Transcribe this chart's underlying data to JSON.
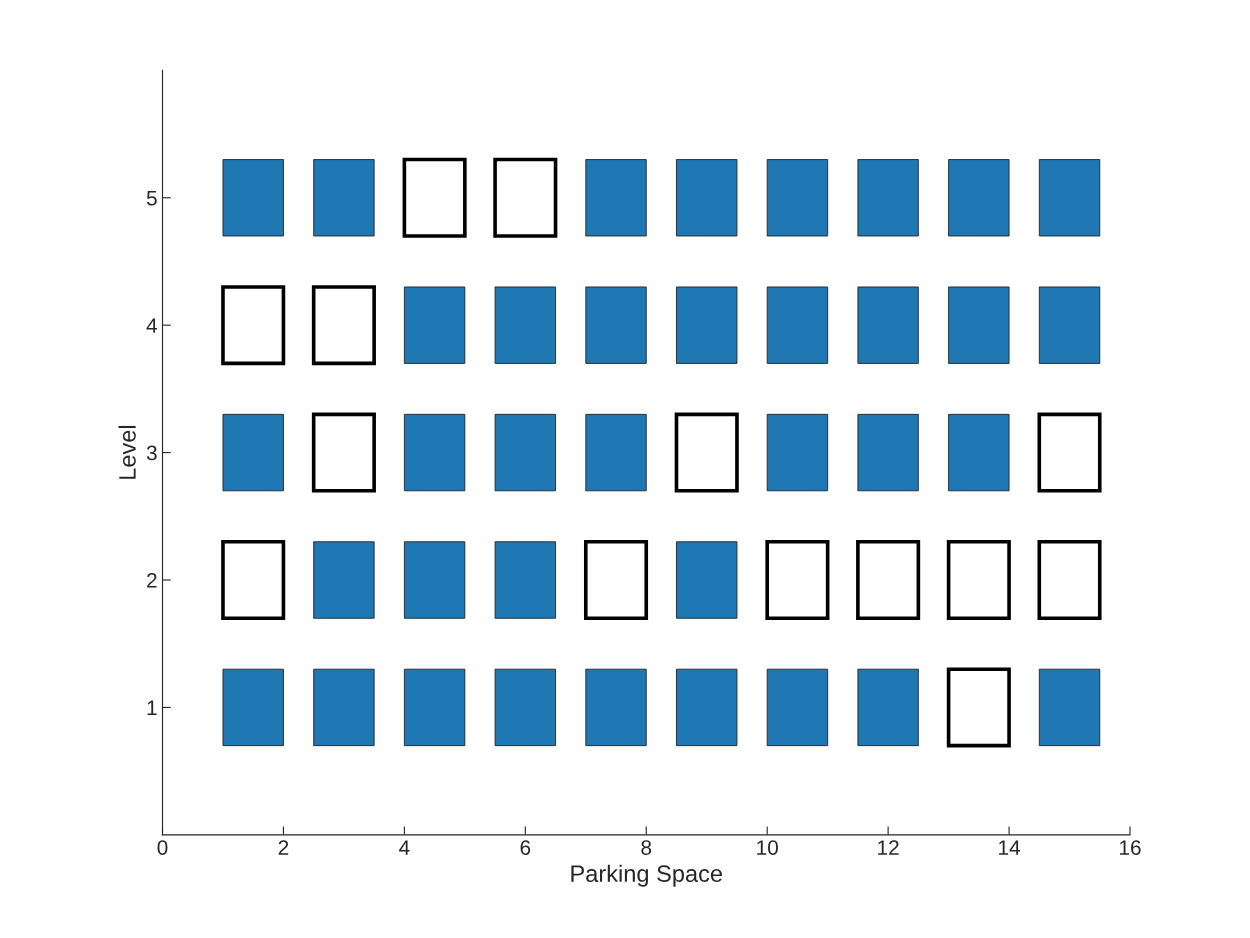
{
  "chart_data": {
    "type": "bar",
    "xlabel": "Parking Space",
    "ylabel": "Level",
    "xlim": [
      0,
      16
    ],
    "xticks": [
      0,
      2,
      4,
      6,
      8,
      10,
      12,
      14,
      16
    ],
    "ylim": [
      0,
      6
    ],
    "yticks": [
      1,
      2,
      3,
      4,
      5
    ],
    "grid": false,
    "series": [
      {
        "x": [
          1.5,
          3,
          4.5,
          6,
          7.5,
          9,
          10.5,
          12,
          13.5,
          15
        ],
        "base": [
          4.7,
          4.7,
          4.7,
          4.7,
          4.7,
          4.7,
          4.7,
          4.7,
          4.7,
          4.7
        ],
        "values": [
          0.6,
          0.6,
          0.6,
          0.6,
          0.6,
          0.6,
          0.6,
          0.6,
          0.6,
          0.6
        ],
        "colors": [
          "#1f77b4",
          "#1f77b4",
          "#ffffff",
          "#ffffff",
          "#1f77b4",
          "#1f77b4",
          "#1f77b4",
          "#1f77b4",
          "#1f77b4",
          "#1f77b4"
        ]
      },
      {
        "x": [
          1.5,
          3,
          4.5,
          6,
          7.5,
          9,
          10.5,
          12,
          13.5,
          15
        ],
        "base": [
          3.7,
          3.7,
          3.7,
          3.7,
          3.7,
          3.7,
          3.7,
          3.7,
          3.7,
          3.7
        ],
        "values": [
          0.6,
          0.6,
          0.6,
          0.6,
          0.6,
          0.6,
          0.6,
          0.6,
          0.6,
          0.6
        ],
        "colors": [
          "#ffffff",
          "#ffffff",
          "#1f77b4",
          "#1f77b4",
          "#1f77b4",
          "#1f77b4",
          "#1f77b4",
          "#1f77b4",
          "#1f77b4",
          "#1f77b4"
        ]
      },
      {
        "x": [
          1.5,
          3,
          4.5,
          6,
          7.5,
          9,
          10.5,
          12,
          13.5,
          15
        ],
        "base": [
          2.7,
          2.7,
          2.7,
          2.7,
          2.7,
          2.7,
          2.7,
          2.7,
          2.7,
          2.7
        ],
        "values": [
          0.6,
          0.6,
          0.6,
          0.6,
          0.6,
          0.6,
          0.6,
          0.6,
          0.6,
          0.6
        ],
        "colors": [
          "#1f77b4",
          "#ffffff",
          "#1f77b4",
          "#1f77b4",
          "#1f77b4",
          "#ffffff",
          "#1f77b4",
          "#1f77b4",
          "#1f77b4",
          "#ffffff"
        ]
      },
      {
        "x": [
          1.5,
          3,
          4.5,
          6,
          7.5,
          9,
          10.5,
          12,
          13.5,
          15
        ],
        "base": [
          1.7,
          1.7,
          1.7,
          1.7,
          1.7,
          1.7,
          1.7,
          1.7,
          1.7,
          1.7
        ],
        "values": [
          0.6,
          0.6,
          0.6,
          0.6,
          0.6,
          0.6,
          0.6,
          0.6,
          0.6,
          0.6
        ],
        "colors": [
          "#ffffff",
          "#1f77b4",
          "#1f77b4",
          "#1f77b4",
          "#ffffff",
          "#1f77b4",
          "#ffffff",
          "#ffffff",
          "#ffffff",
          "#ffffff"
        ]
      },
      {
        "x": [
          1.5,
          3,
          4.5,
          6,
          7.5,
          9,
          10.5,
          12,
          13.5,
          15
        ],
        "base": [
          0.7,
          0.7,
          0.7,
          0.7,
          0.7,
          0.7,
          0.7,
          0.7,
          0.7,
          0.7
        ],
        "values": [
          0.6,
          0.6,
          0.6,
          0.6,
          0.6,
          0.6,
          0.6,
          0.6,
          0.6,
          0.6
        ],
        "colors": [
          "#1f77b4",
          "#1f77b4",
          "#1f77b4",
          "#1f77b4",
          "#1f77b4",
          "#1f77b4",
          "#1f77b4",
          "#1f77b4",
          "#ffffff",
          "#1f77b4"
        ]
      }
    ]
  }
}
